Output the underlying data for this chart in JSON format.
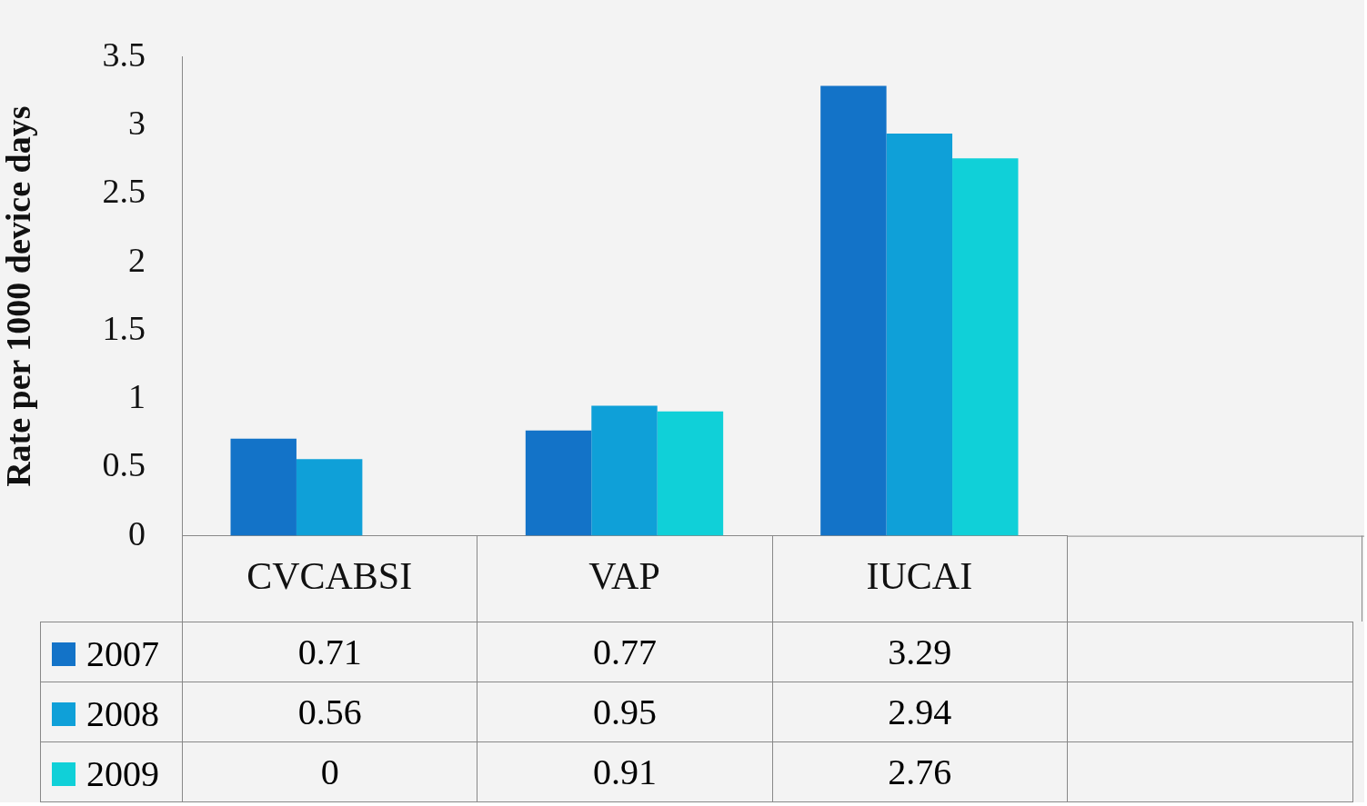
{
  "chart_data": {
    "type": "bar",
    "ylabel": "Rate per 1000 device days",
    "categories": [
      "CVCABSI",
      "VAP",
      "IUCAI"
    ],
    "series": [
      {
        "name": "2007",
        "color": "#1373c8",
        "values": [
          0.71,
          0.77,
          3.29
        ]
      },
      {
        "name": "2008",
        "color": "#0fa0d8",
        "values": [
          0.56,
          0.95,
          2.94
        ]
      },
      {
        "name": "2009",
        "color": "#10d0d8",
        "values": [
          0,
          0.91,
          2.76
        ]
      }
    ],
    "ylim": [
      0,
      3.5
    ],
    "yticks": [
      0,
      0.5,
      1,
      1.5,
      2,
      2.5,
      3,
      3.5
    ],
    "grid": false,
    "legend": "bottom left",
    "data_labels": true
  }
}
